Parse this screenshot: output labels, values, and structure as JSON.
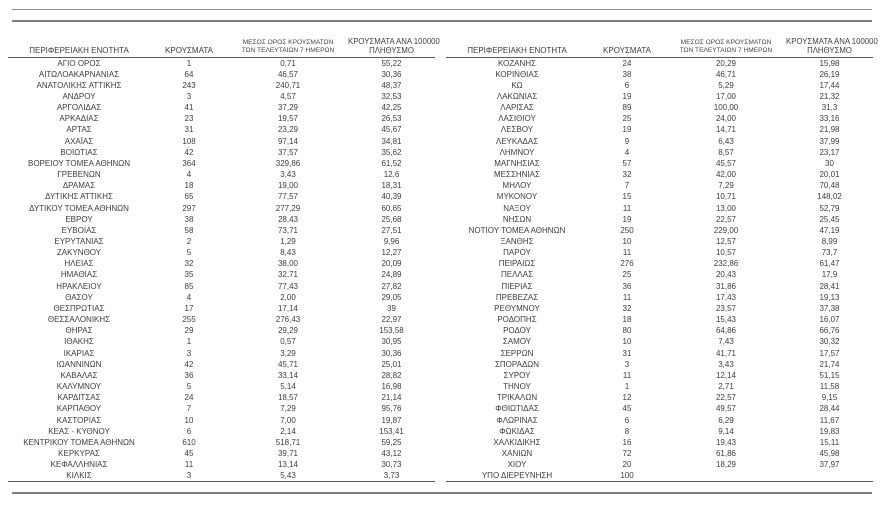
{
  "colors": {
    "text": "#3d3d3d",
    "rule_gray": "#8c8c8c",
    "table_border": "#5a5a5a",
    "background": "#ffffff"
  },
  "headers": {
    "region": "ΠΕΡΙΦΕΡΕΙΑΚΗ ΕΝΟΤΗΤΑ",
    "cases": "ΚΡΟΥΣΜΑΤΑ",
    "avg7_line1": "ΜΕΣΟΣ ΟΡΟΣ ΚΡΟΥΣΜΑΤΩΝ",
    "avg7_line2": "ΤΩΝ ΤΕΛΕΥΤΑΙΩΝ 7 ΗΜΕΡΩΝ",
    "per100k_line1": "ΚΡΟΥΣΜΑΤΑ ΑΝΑ 100000",
    "per100k_line2": "ΠΛΗΘΥΣΜΟ"
  },
  "left_table": {
    "rows": [
      [
        "ΑΓΙΟ ΟΡΟΣ",
        "1",
        "0,71",
        "55,22"
      ],
      [
        "ΑΙΤΩΛΟΑΚΑΡΝΑΝΙΑΣ",
        "64",
        "46,57",
        "30,36"
      ],
      [
        "ΑΝΑΤΟΛΙΚΗΣ ΑΤΤΙΚΗΣ",
        "243",
        "240,71",
        "48,37"
      ],
      [
        "ΑΝΔΡΟΥ",
        "3",
        "4,57",
        "32,53"
      ],
      [
        "ΑΡΓΟΛΙΔΑΣ",
        "41",
        "37,29",
        "42,25"
      ],
      [
        "ΑΡΚΑΔΙΑΣ",
        "23",
        "19,57",
        "26,53"
      ],
      [
        "ΑΡΤΑΣ",
        "31",
        "23,29",
        "45,67"
      ],
      [
        "ΑΧΑΪΑΣ",
        "108",
        "97,14",
        "34,81"
      ],
      [
        "ΒΟΙΩΤΙΑΣ",
        "42",
        "37,57",
        "35,62"
      ],
      [
        "ΒΟΡΕΙΟΥ ΤΟΜΕΑ ΑΘΗΝΩΝ",
        "364",
        "329,86",
        "61,52"
      ],
      [
        "ΓΡΕΒΕΝΩΝ",
        "4",
        "3,43",
        "12,6"
      ],
      [
        "ΔΡΑΜΑΣ",
        "18",
        "19,00",
        "18,31"
      ],
      [
        "ΔΥΤΙΚΗΣ ΑΤΤΙΚΗΣ",
        "65",
        "77,57",
        "40,39"
      ],
      [
        "ΔΥΤΙΚΟΥ ΤΟΜΕΑ ΑΘΗΝΩΝ",
        "297",
        "277,29",
        "60,65"
      ],
      [
        "ΕΒΡΟΥ",
        "38",
        "28,43",
        "25,68"
      ],
      [
        "ΕΥΒΟΙΑΣ",
        "58",
        "73,71",
        "27,51"
      ],
      [
        "ΕΥΡΥΤΑΝΙΑΣ",
        "2",
        "1,29",
        "9,96"
      ],
      [
        "ΖΑΚΥΝΘΟΥ",
        "5",
        "8,43",
        "12,27"
      ],
      [
        "ΗΛΕΙΑΣ",
        "32",
        "38,00",
        "20,09"
      ],
      [
        "ΗΜΑΘΙΑΣ",
        "35",
        "32,71",
        "24,89"
      ],
      [
        "ΗΡΑΚΛΕΙΟΥ",
        "85",
        "77,43",
        "27,82"
      ],
      [
        "ΘΑΣΟΥ",
        "4",
        "2,00",
        "29,05"
      ],
      [
        "ΘΕΣΠΡΩΤΙΑΣ",
        "17",
        "17,14",
        "39"
      ],
      [
        "ΘΕΣΣΑΛΟΝΙΚΗΣ",
        "255",
        "276,43",
        "22,97"
      ],
      [
        "ΘΗΡΑΣ",
        "29",
        "29,29",
        "153,58"
      ],
      [
        "ΙΘΑΚΗΣ",
        "1",
        "0,57",
        "30,95"
      ],
      [
        "ΙΚΑΡΙΑΣ",
        "3",
        "3,29",
        "30,36"
      ],
      [
        "ΙΩΑΝΝΙΝΩΝ",
        "42",
        "45,71",
        "25,01"
      ],
      [
        "ΚΑΒΑΛΑΣ",
        "36",
        "33,14",
        "28,82"
      ],
      [
        "ΚΑΛΥΜΝΟΥ",
        "5",
        "5,14",
        "16,98"
      ],
      [
        "ΚΑΡΔΙΤΣΑΣ",
        "24",
        "18,57",
        "21,14"
      ],
      [
        "ΚΑΡΠΑΘΟΥ",
        "7",
        "7,29",
        "95,76"
      ],
      [
        "ΚΑΣΤΟΡΙΑΣ",
        "10",
        "7,00",
        "19,87"
      ],
      [
        "ΚΕΑΣ - ΚΥΘΝΟΥ",
        "6",
        "2,14",
        "153,41"
      ],
      [
        "ΚΕΝΤΡΙΚΟΥ ΤΟΜΕΑ ΑΘΗΝΩΝ",
        "610",
        "518,71",
        "59,25"
      ],
      [
        "ΚΕΡΚΥΡΑΣ",
        "45",
        "39,71",
        "43,12"
      ],
      [
        "ΚΕΦΑΛΛΗΝΙΑΣ",
        "11",
        "13,14",
        "30,73"
      ],
      [
        "ΚΙΛΚΙΣ",
        "3",
        "5,43",
        "3,73"
      ]
    ]
  },
  "right_table": {
    "rows": [
      [
        "ΚΟΖΑΝΗΣ",
        "24",
        "20,29",
        "15,98"
      ],
      [
        "ΚΟΡΙΝΘΙΑΣ",
        "38",
        "46,71",
        "26,19"
      ],
      [
        "ΚΩ",
        "6",
        "5,29",
        "17,44"
      ],
      [
        "ΛΑΚΩΝΙΑΣ",
        "19",
        "17,00",
        "21,32"
      ],
      [
        "ΛΑΡΙΣΑΣ",
        "89",
        "100,00",
        "31,3"
      ],
      [
        "ΛΑΣΙΘΙΟΥ",
        "25",
        "24,00",
        "33,16"
      ],
      [
        "ΛΕΣΒΟΥ",
        "19",
        "14,71",
        "21,98"
      ],
      [
        "ΛΕΥΚΑΔΑΣ",
        "9",
        "6,43",
        "37,99"
      ],
      [
        "ΛΗΜΝΟΥ",
        "4",
        "8,57",
        "23,17"
      ],
      [
        "ΜΑΓΝΗΣΙΑΣ",
        "57",
        "45,57",
        "30"
      ],
      [
        "ΜΕΣΣΗΝΙΑΣ",
        "32",
        "42,00",
        "20,01"
      ],
      [
        "ΜΗΛΟΥ",
        "7",
        "7,29",
        "70,48"
      ],
      [
        "ΜΥΚΟΝΟΥ",
        "15",
        "10,71",
        "148,02"
      ],
      [
        "ΝΑΞΟΥ",
        "11",
        "13,00",
        "52,79"
      ],
      [
        "ΝΗΣΩΝ",
        "19",
        "22,57",
        "25,45"
      ],
      [
        "ΝΟΤΙΟΥ ΤΟΜΕΑ ΑΘΗΝΩΝ",
        "250",
        "229,00",
        "47,19"
      ],
      [
        "ΞΑΝΘΗΣ",
        "10",
        "12,57",
        "8,99"
      ],
      [
        "ΠΑΡΟΥ",
        "11",
        "10,57",
        "73,7"
      ],
      [
        "ΠΕΙΡΑΙΩΣ",
        "276",
        "232,86",
        "61,47"
      ],
      [
        "ΠΕΛΛΑΣ",
        "25",
        "20,43",
        "17,9"
      ],
      [
        "ΠΙΕΡΙΑΣ",
        "36",
        "31,86",
        "28,41"
      ],
      [
        "ΠΡΕΒΕΖΑΣ",
        "11",
        "17,43",
        "19,13"
      ],
      [
        "ΡΕΘΥΜΝΟΥ",
        "32",
        "23,57",
        "37,38"
      ],
      [
        "ΡΟΔΟΠΗΣ",
        "18",
        "15,43",
        "16,07"
      ],
      [
        "ΡΟΔΟΥ",
        "80",
        "64,86",
        "66,76"
      ],
      [
        "ΣΑΜΟΥ",
        "10",
        "7,43",
        "30,32"
      ],
      [
        "ΣΕΡΡΩΝ",
        "31",
        "41,71",
        "17,57"
      ],
      [
        "ΣΠΟΡΑΔΩΝ",
        "3",
        "3,43",
        "21,74"
      ],
      [
        "ΣΥΡΟΥ",
        "11",
        "12,14",
        "51,15"
      ],
      [
        "ΤΗΝΟΥ",
        "1",
        "2,71",
        "11,58"
      ],
      [
        "ΤΡΙΚΑΛΩΝ",
        "12",
        "22,57",
        "9,15"
      ],
      [
        "ΦΘΙΩΤΙΔΑΣ",
        "45",
        "49,57",
        "28,44"
      ],
      [
        "ΦΛΩΡΙΝΑΣ",
        "6",
        "6,29",
        "11,67"
      ],
      [
        "ΦΩΚΙΔΑΣ",
        "8",
        "9,14",
        "19,83"
      ],
      [
        "ΧΑΛΚΙΔΙΚΗΣ",
        "16",
        "19,43",
        "15,11"
      ],
      [
        "ΧΑΝΙΩΝ",
        "72",
        "61,86",
        "45,98"
      ],
      [
        "ΧΙΟΥ",
        "20",
        "18,29",
        "37,97"
      ],
      [
        "ΥΠΟ ΔΙΕΡΕΥΝΗΣΗ",
        "100",
        "",
        ""
      ]
    ]
  }
}
